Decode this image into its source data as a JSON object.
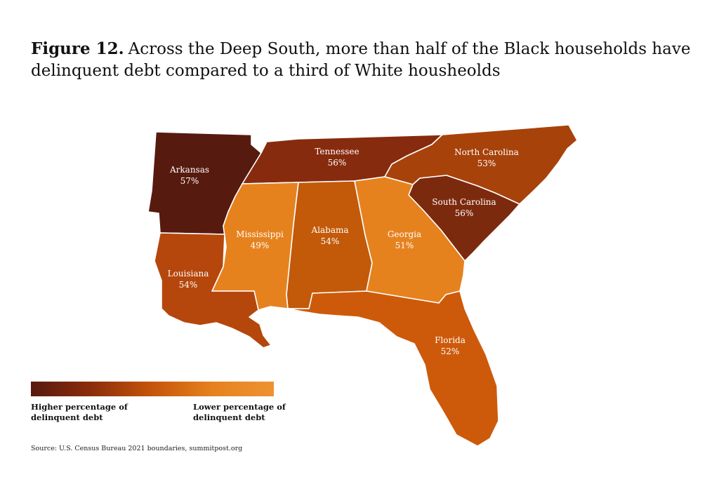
{
  "title": {
    "figure": "Figure 12.",
    "text": "Across the Deep South, more than half of the Black households have delinquent debt compared to a third of White housheolds"
  },
  "states": [
    {
      "key": "arkansas",
      "name": "Arkansas",
      "value": "57%",
      "fill": "#571a0f"
    },
    {
      "key": "tennessee",
      "name": "Tennessee",
      "value": "56%",
      "fill": "#872b0e"
    },
    {
      "key": "north_carolina",
      "name": "North Carolina",
      "value": "53%",
      "fill": "#a8420b"
    },
    {
      "key": "south_carolina",
      "name": "South Carolina",
      "value": "56%",
      "fill": "#7c2a0e"
    },
    {
      "key": "mississippi",
      "name": "Mississippi",
      "value": "49%",
      "fill": "#e6821e"
    },
    {
      "key": "alabama",
      "name": "Alabama",
      "value": "54%",
      "fill": "#c25a0a"
    },
    {
      "key": "georgia",
      "name": "Georgia",
      "value": "51%",
      "fill": "#e6821e"
    },
    {
      "key": "louisiana",
      "name": "Louisiana",
      "value": "54%",
      "fill": "#b5470d"
    },
    {
      "key": "florida",
      "name": "Florida",
      "value": "52%",
      "fill": "#cd5a0a"
    }
  ],
  "legend": {
    "colors": [
      "#571a0f",
      "#8c2d0c",
      "#c5550a",
      "#e6821e",
      "#ee9232"
    ],
    "high_label": "Higher percentage of delinquent debt",
    "low_label": "Lower percentage of delinquent debt"
  },
  "source": "Source: U.S. Census Bureau 2021 boundaries, summitpost.org"
}
